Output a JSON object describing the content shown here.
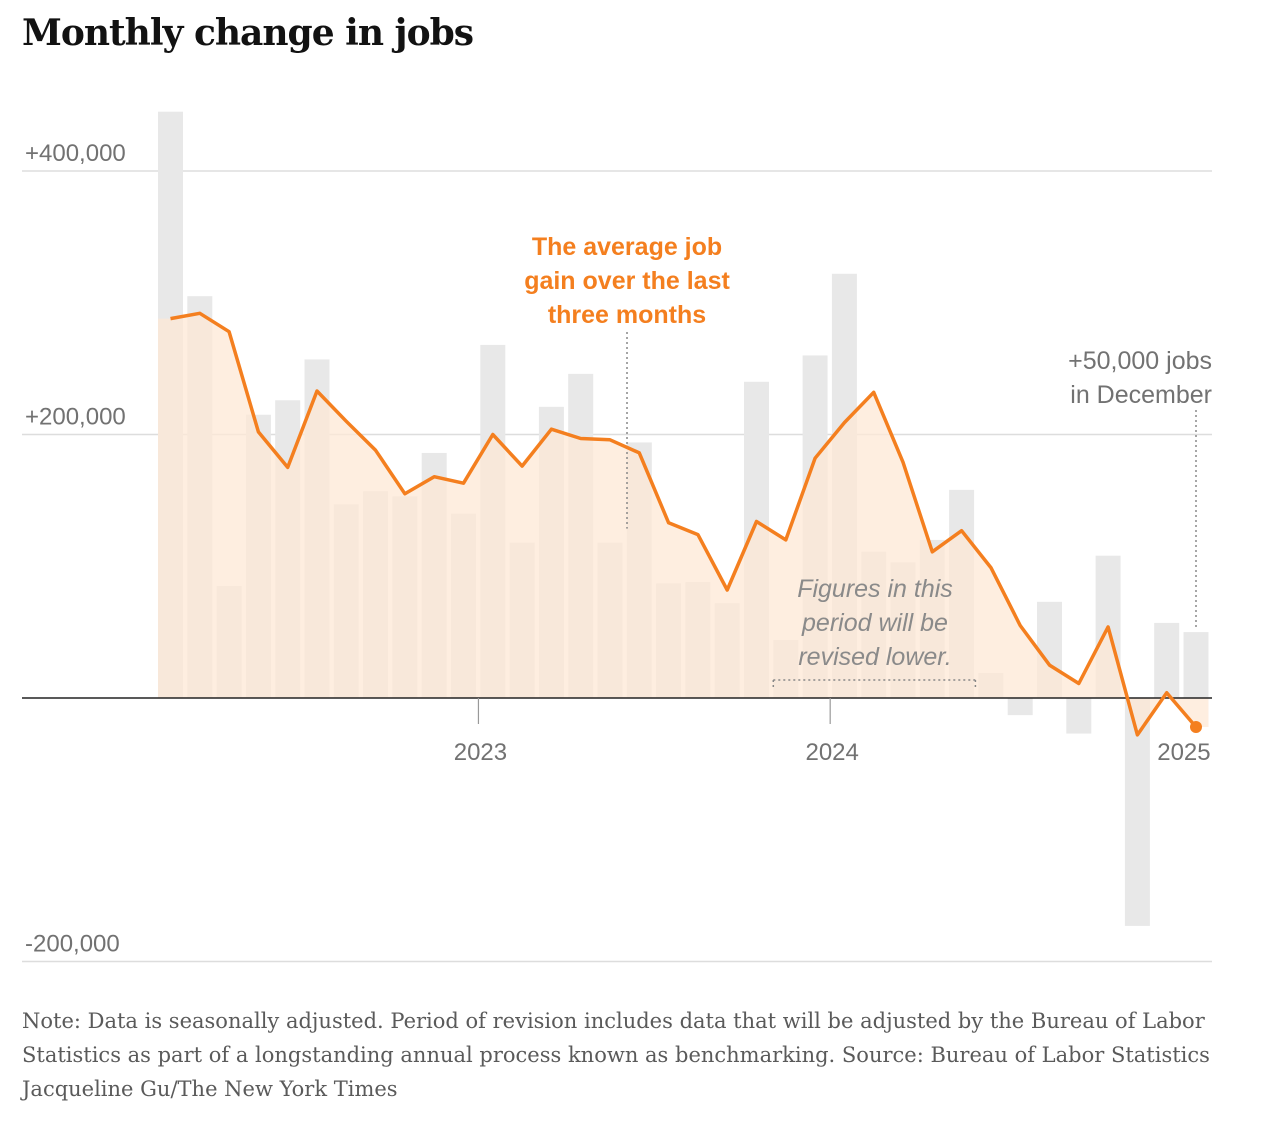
{
  "title": "Monthly change in jobs",
  "note": "Note: Data is seasonally adjusted. Period of revision includes data that will be adjusted by the Bureau of Labor Statistics as part of a longstanding annual process known as benchmarking.  Source: Bureau of Labor Statistics  Jacqueline Gu/The New York Times",
  "chart_data": {
    "type": "bar",
    "title": "Monthly change in jobs",
    "y_tick_labels": [
      "+400,000",
      "+200,000",
      "-200,000"
    ],
    "y_ticks": [
      400000,
      200000,
      -200000
    ],
    "ylim": [
      -200000,
      445000
    ],
    "x_tick_labels": [
      "2023",
      "2024",
      "2025"
    ],
    "x_tick_values": [
      2023,
      2024,
      2025
    ],
    "x_start": 2022.5833,
    "month_step": 0.0833,
    "series": [
      {
        "name": "Monthly change in jobs",
        "type": "bar",
        "color": "#e8e8e8",
        "values": [
          445000,
          305000,
          85000,
          215000,
          226000,
          257000,
          147000,
          157000,
          153000,
          186000,
          140000,
          268000,
          118000,
          221000,
          246000,
          118000,
          194000,
          87000,
          88000,
          72000,
          240000,
          44000,
          260000,
          322000,
          111000,
          103000,
          120000,
          158000,
          19000,
          -13000,
          73000,
          -27000,
          108000,
          -173000,
          57000,
          50000
        ]
      },
      {
        "name": "The average job gain over the last three months",
        "type": "line",
        "color": "#f47f1f",
        "fill": "#fde8d6",
        "values": [
          288000,
          292000,
          278000,
          202000,
          175000,
          233000,
          210000,
          188000,
          155000,
          168000,
          163000,
          200000,
          176000,
          204000,
          197000,
          196000,
          186000,
          133000,
          124000,
          82000,
          134000,
          120000,
          182000,
          209000,
          232000,
          179000,
          111000,
          127000,
          99000,
          55000,
          25000,
          11000,
          54000,
          -28000,
          4000,
          -22000
        ]
      }
    ],
    "annotations": {
      "average_label": [
        "The average job",
        "gain over the last",
        "three months"
      ],
      "december_label": [
        "+50,000 jobs",
        "in December"
      ],
      "revision_label": [
        "Figures in this",
        "period will be",
        "revised lower."
      ]
    }
  }
}
